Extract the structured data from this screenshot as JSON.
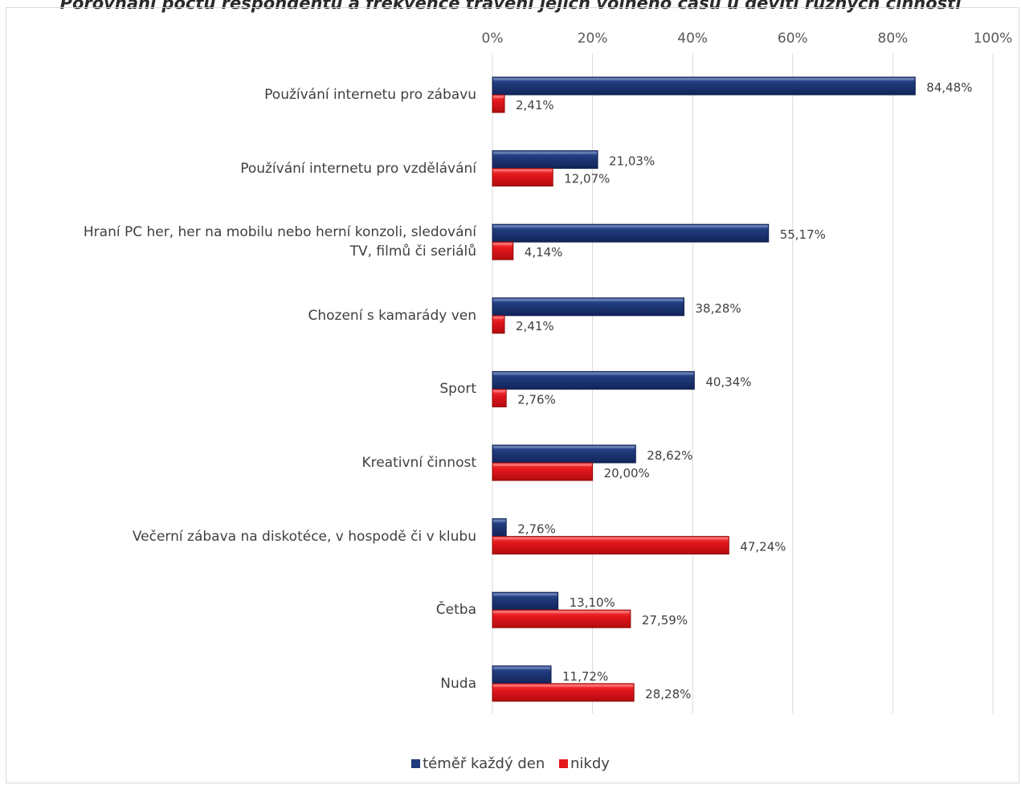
{
  "chart_data": {
    "type": "bar",
    "orientation": "horizontal",
    "title": "Porovnání počtu respondentů a frekvence trávení jejich volného času u devíti různých činností",
    "xlim": [
      0,
      100
    ],
    "x_ticks": [
      "0%",
      "20%",
      "40%",
      "60%",
      "80%",
      "100%"
    ],
    "grid": true,
    "legend_position": "bottom",
    "categories": [
      [
        "Používání internetu pro zábavu"
      ],
      [
        "Používání internetu pro vzdělávání"
      ],
      [
        "Hraní PC her, her na mobilu nebo herní konzoli, sledování",
        "TV, filmů či seriálů"
      ],
      [
        "Chození s kamarády ven"
      ],
      [
        "Sport"
      ],
      [
        "Kreativní činnost"
      ],
      [
        "Večerní zábava na diskotéce, v hospodě či v klubu"
      ],
      [
        "Četba"
      ],
      [
        "Nuda"
      ]
    ],
    "series": [
      {
        "name": "téměř každý den",
        "color": "#1f3a7a",
        "values": [
          84.48,
          21.03,
          55.17,
          38.28,
          40.34,
          28.62,
          2.76,
          13.1,
          11.72
        ],
        "labels": [
          "84,48%",
          "21,03%",
          "55,17%",
          "38,28%",
          "40,34%",
          "28,62%",
          "2,76%",
          "13,10%",
          "11,72%"
        ]
      },
      {
        "name": "nikdy",
        "color": "#e3171c",
        "values": [
          2.41,
          12.07,
          4.14,
          2.41,
          2.76,
          20.0,
          47.24,
          27.59,
          28.28
        ],
        "labels": [
          "2,41%",
          "12,07%",
          "4,14%",
          "2,41%",
          "2,76%",
          "20,00%",
          "47,24%",
          "27,59%",
          "28,28%"
        ]
      }
    ]
  }
}
